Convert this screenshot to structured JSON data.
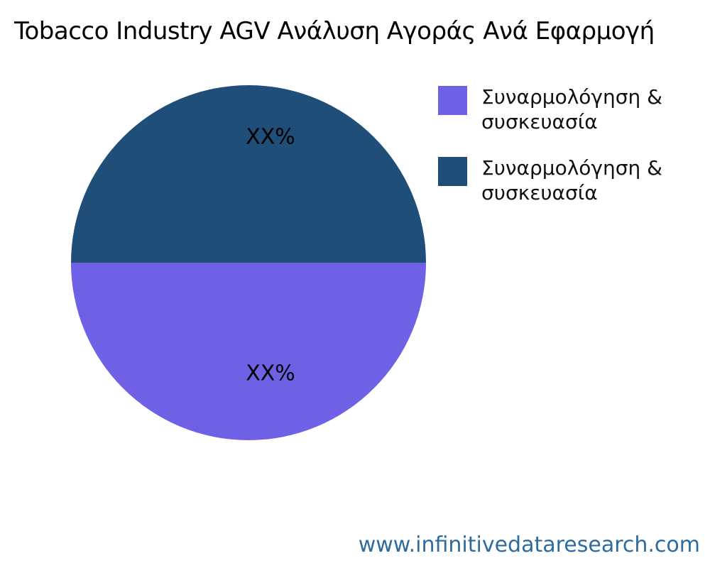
{
  "title": "Tobacco Industry AGV Ανάλυση Αγοράς Ανά Εφαρμογή",
  "chart_data": {
    "type": "pie",
    "title": "Tobacco Industry AGV Ανάλυση Αγοράς Ανά Εφαρμογή",
    "slices": [
      {
        "name": "Συναρμολόγηση & συσκευασία",
        "value": 50,
        "label": "XX%",
        "color": "#6E61E6"
      },
      {
        "name": "Συναρμολόγηση & συσκευασία",
        "value": 50,
        "label": "XX%",
        "color": "#1F4E78"
      }
    ],
    "start_angle_deg": 180,
    "direction": "counterclockwise",
    "legend_position": "right",
    "label_color": "#000000",
    "background": "#ffffff"
  },
  "footer": {
    "website": "www.infinitivedataresearch.com",
    "color": "#2E6B9E"
  }
}
